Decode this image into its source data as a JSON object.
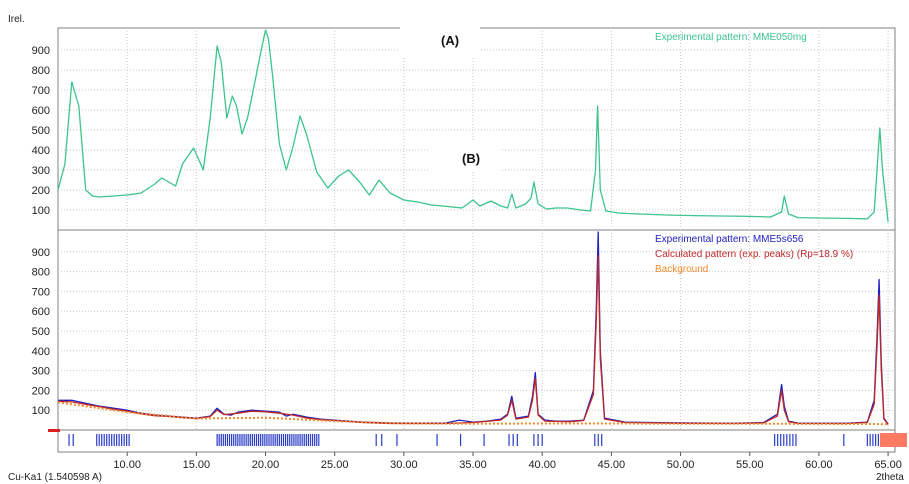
{
  "labels": {
    "y_axis": "Irel.",
    "x_axis": "2theta",
    "wavelength": "Cu-Ka1 (1.540598 A)",
    "panel_a": "(A)",
    "panel_b": "(B)"
  },
  "colors": {
    "top_pattern": "#3cc48c",
    "bottom_exp": "#2020c0",
    "bottom_calc": "#c02828",
    "background": "#f08a2a",
    "tick_marks": "#2a3cc8",
    "range_marker": "#ff7a60"
  },
  "chart_data": [
    {
      "type": "line",
      "panel": "top",
      "ylabel": "Irel.",
      "ylim": [
        0,
        1000
      ],
      "xlim": [
        5,
        65.5
      ],
      "yticks": [
        100,
        200,
        300,
        400,
        500,
        600,
        700,
        800,
        900
      ],
      "grid": true,
      "legend_position": "top-right",
      "series": [
        {
          "name": "Experimental pattern: MME050mg",
          "x": [
            5.0,
            5.5,
            6.0,
            6.5,
            7.0,
            7.5,
            8.0,
            9.0,
            10.0,
            11.0,
            12.0,
            12.5,
            13.5,
            14.0,
            14.8,
            15.5,
            16.0,
            16.5,
            16.8,
            17.2,
            17.6,
            17.9,
            18.3,
            18.7,
            19.2,
            19.6,
            20.0,
            20.2,
            20.5,
            21.0,
            21.5,
            22.0,
            22.5,
            23.0,
            23.7,
            24.5,
            25.3,
            26.0,
            26.8,
            27.5,
            28.2,
            29.0,
            30.0,
            31.0,
            32.0,
            32.8,
            33.5,
            34.2,
            35.0,
            35.5,
            36.3,
            37.0,
            37.5,
            37.8,
            38.1,
            38.8,
            39.2,
            39.4,
            39.7,
            40.3,
            41.0,
            41.8,
            42.8,
            43.5,
            43.85,
            44.0,
            44.2,
            44.6,
            45.5,
            47.0,
            49.0,
            51.0,
            53.0,
            55.0,
            56.5,
            57.3,
            57.5,
            57.8,
            58.5,
            60.0,
            62.0,
            63.5,
            64.0,
            64.2,
            64.4,
            64.6,
            65.0
          ],
          "y": [
            200,
            330,
            740,
            620,
            200,
            170,
            165,
            170,
            175,
            185,
            230,
            260,
            220,
            330,
            410,
            300,
            560,
            920,
            840,
            560,
            670,
            620,
            480,
            560,
            730,
            870,
            1000,
            960,
            780,
            430,
            300,
            420,
            570,
            470,
            290,
            210,
            270,
            300,
            240,
            175,
            250,
            185,
            150,
            140,
            125,
            120,
            115,
            110,
            150,
            120,
            145,
            120,
            110,
            180,
            110,
            130,
            160,
            240,
            130,
            105,
            110,
            110,
            100,
            95,
            300,
            620,
            200,
            95,
            85,
            80,
            75,
            72,
            70,
            68,
            65,
            90,
            170,
            80,
            62,
            60,
            58,
            56,
            90,
            300,
            510,
            300,
            40
          ]
        }
      ]
    },
    {
      "type": "line",
      "panel": "bottom",
      "xlabel": "2theta",
      "ylim": [
        0,
        1000
      ],
      "xlim": [
        5,
        65.5
      ],
      "yticks": [
        100,
        200,
        300,
        400,
        500,
        600,
        700,
        800,
        900
      ],
      "xticks": [
        10.0,
        15.0,
        20.0,
        25.0,
        30.0,
        35.0,
        40.0,
        45.0,
        50.0,
        55.0,
        60.0,
        65.0
      ],
      "xtick_labels": [
        "10.00",
        "15.00",
        "20.00",
        "25.00",
        "30.00",
        "35.00",
        "40.00",
        "45.00",
        "50.00",
        "55.00",
        "60.00",
        "65.00"
      ],
      "grid": true,
      "legend_position": "top-right",
      "series": [
        {
          "name": "Experimental pattern: MME5s656",
          "x": [
            5.0,
            6.0,
            7.0,
            8.0,
            9.0,
            10.0,
            11.0,
            12.0,
            13.0,
            14.0,
            15.0,
            16.0,
            16.5,
            17.0,
            17.5,
            18.0,
            19.0,
            20.0,
            21.0,
            21.5,
            22.0,
            23.0,
            24.0,
            25.0,
            27.0,
            29.0,
            31.0,
            33.0,
            34.0,
            35.0,
            36.0,
            37.0,
            37.5,
            37.8,
            38.1,
            39.0,
            39.3,
            39.5,
            39.7,
            40.2,
            41.0,
            42.0,
            43.0,
            43.7,
            43.9,
            44.05,
            44.2,
            44.5,
            46.0,
            48.0,
            50.0,
            52.0,
            54.0,
            56.0,
            57.0,
            57.3,
            57.5,
            57.8,
            58.5,
            60.0,
            62.0,
            63.5,
            64.0,
            64.2,
            64.35,
            64.5,
            64.7,
            65.0
          ],
          "y": [
            150,
            150,
            135,
            120,
            110,
            100,
            85,
            75,
            70,
            65,
            60,
            70,
            110,
            80,
            75,
            90,
            100,
            95,
            90,
            70,
            80,
            65,
            55,
            50,
            40,
            35,
            35,
            35,
            50,
            40,
            45,
            55,
            80,
            170,
            60,
            70,
            170,
            290,
            80,
            50,
            45,
            45,
            50,
            200,
            600,
            1000,
            400,
            60,
            40,
            38,
            36,
            35,
            34,
            38,
            80,
            230,
            120,
            45,
            35,
            34,
            34,
            40,
            150,
            470,
            760,
            350,
            60,
            30
          ]
        },
        {
          "name": "Calculated pattern (exp. peaks) (Rp=18.9 %)",
          "x": [
            5.0,
            6.0,
            7.0,
            8.0,
            9.0,
            10.0,
            11.0,
            12.0,
            13.0,
            14.0,
            15.0,
            16.0,
            16.5,
            17.0,
            18.0,
            19.0,
            20.0,
            21.0,
            22.0,
            23.0,
            24.0,
            25.0,
            27.0,
            29.0,
            31.0,
            33.0,
            35.0,
            37.0,
            37.5,
            37.8,
            38.1,
            39.0,
            39.3,
            39.5,
            39.7,
            40.2,
            42.0,
            43.0,
            43.7,
            43.9,
            44.05,
            44.2,
            44.5,
            46.0,
            50.0,
            54.0,
            56.0,
            57.0,
            57.3,
            57.5,
            57.8,
            58.5,
            62.0,
            63.5,
            64.0,
            64.2,
            64.35,
            64.5,
            64.7,
            65.0
          ],
          "y": [
            145,
            142,
            130,
            118,
            105,
            95,
            82,
            72,
            68,
            62,
            58,
            68,
            100,
            78,
            85,
            95,
            92,
            85,
            75,
            60,
            52,
            48,
            38,
            33,
            33,
            33,
            38,
            50,
            75,
            150,
            55,
            65,
            150,
            260,
            75,
            45,
            42,
            48,
            180,
            540,
            880,
            360,
            55,
            38,
            34,
            33,
            36,
            70,
            200,
            100,
            42,
            33,
            33,
            38,
            130,
            420,
            680,
            310,
            55,
            28
          ]
        },
        {
          "name": "Background",
          "x": [
            5.0,
            10.0,
            15.0,
            20.0,
            25.0,
            30.0,
            35.0,
            40.0,
            45.0,
            50.0,
            55.0,
            60.0,
            65.0
          ],
          "y": [
            140,
            90,
            58,
            62,
            45,
            33,
            32,
            33,
            33,
            32,
            32,
            31,
            30
          ]
        }
      ]
    }
  ]
}
